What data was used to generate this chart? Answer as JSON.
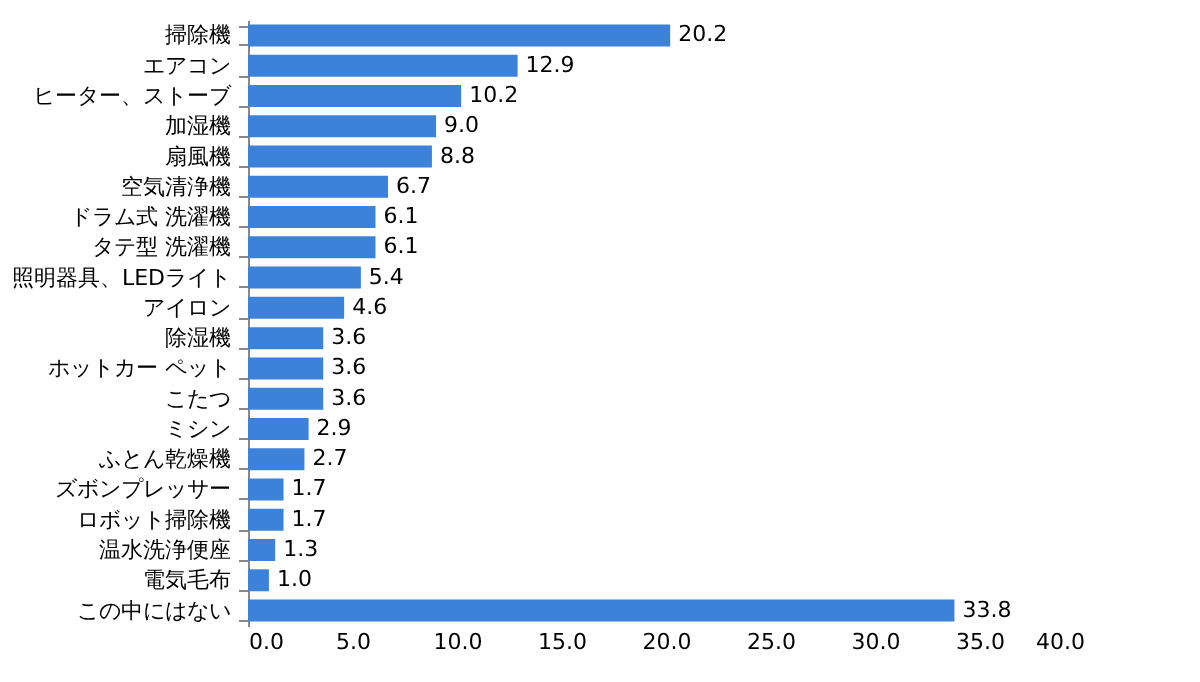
{
  "chart_data": {
    "type": "bar",
    "orientation": "horizontal",
    "categories": [
      "掃除機",
      "エアコン",
      "ヒーター、ストーブ",
      "加湿機",
      "扇風機",
      "空気清浄機",
      "ドラム式 洗濯機",
      "タテ型 洗濯機",
      "照明器具、LEDライト",
      "アイロン",
      "除湿機",
      "ホットカー ペット",
      "こたつ",
      "ミシン",
      "ふとん乾燥機",
      "ズボンプレッサー",
      "ロボット掃除機",
      "温水洗浄便座",
      "電気毛布",
      "この中にはない"
    ],
    "values": [
      20.2,
      12.9,
      10.2,
      9.0,
      8.8,
      6.7,
      6.1,
      6.1,
      5.4,
      4.6,
      3.6,
      3.6,
      3.6,
      2.9,
      2.7,
      1.7,
      1.7,
      1.3,
      1.0,
      33.8
    ],
    "value_labels": [
      "20.2",
      "12.9",
      "10.2",
      "9.0",
      "8.8",
      "6.7",
      "6.1",
      "6.1",
      "5.4",
      "4.6",
      "3.6",
      "3.6",
      "3.6",
      "2.9",
      "2.7",
      "1.7",
      "1.7",
      "1.3",
      "1.0",
      "33.8"
    ],
    "color": "#3c82d8",
    "xlim": [
      0,
      40
    ],
    "xticks": [
      {
        "value": 0,
        "label": "0.0"
      },
      {
        "value": 5,
        "label": "5.0"
      },
      {
        "value": 10,
        "label": "10.0"
      },
      {
        "value": 15,
        "label": "15.0"
      },
      {
        "value": 20,
        "label": "20.0"
      },
      {
        "value": 25,
        "label": "25.0"
      },
      {
        "value": 30,
        "label": "30.0"
      },
      {
        "value": 35,
        "label": "35.0"
      },
      {
        "value": 40,
        "label": "40.0"
      }
    ],
    "grid": false
  }
}
